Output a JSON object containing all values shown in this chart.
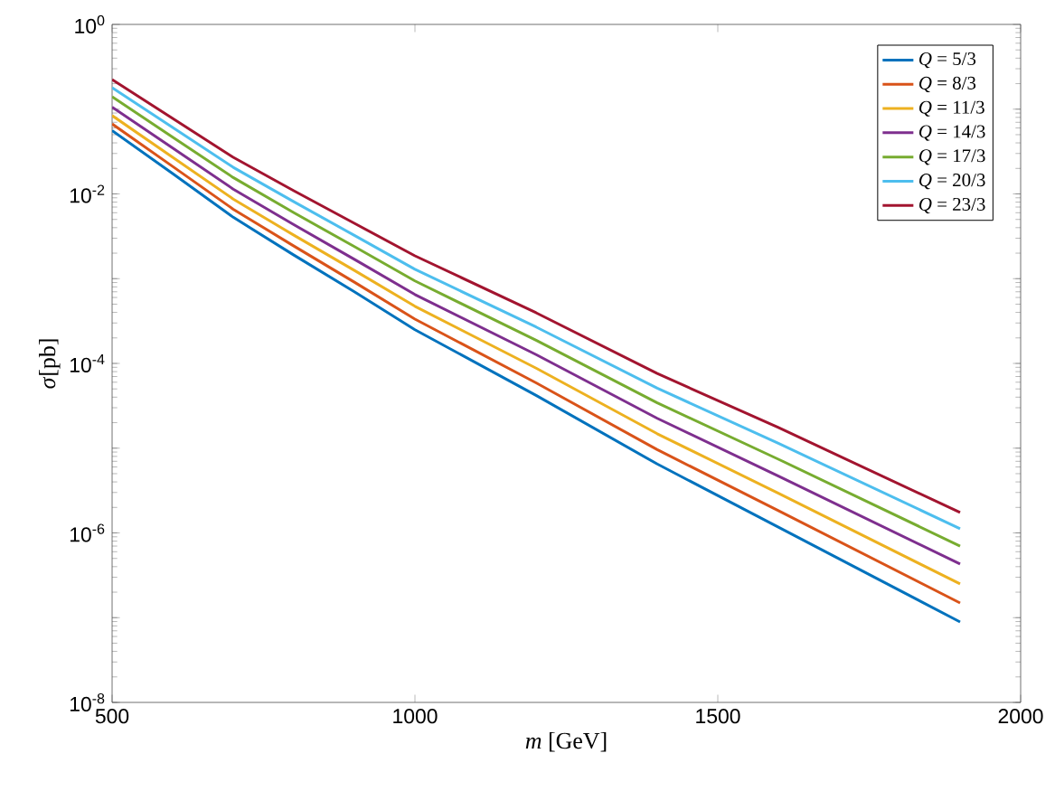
{
  "chart_data": {
    "type": "line",
    "xlabel": "*m* [GeV]",
    "ylabel": "*σ*[pb]",
    "x": [
      500,
      600,
      700,
      800,
      900,
      1000,
      1200,
      1400,
      1600,
      1900
    ],
    "series": [
      {
        "name": "*Q* = 5/3",
        "color": "#0072bd",
        "values": [
          0.056,
          0.0174,
          0.0053,
          0.0019,
          0.0007,
          0.00025,
          4.2e-05,
          6.5e-06,
          1.17e-06,
          8.9e-08
        ]
      },
      {
        "name": "*Q* = 8/3",
        "color": "#d95319",
        "values": [
          0.067,
          0.0211,
          0.0066,
          0.00243,
          0.00091,
          0.000333,
          5.9e-05,
          9.6e-06,
          1.83e-06,
          1.49e-07
        ]
      },
      {
        "name": "*Q* = 11/3",
        "color": "#edb120",
        "values": [
          0.084,
          0.0271,
          0.0087,
          0.00326,
          0.00125,
          0.000472,
          8.8e-05,
          1.48e-05,
          2.94e-06,
          2.5e-07
        ]
      },
      {
        "name": "*Q* = 14/3",
        "color": "#7e2f8e",
        "values": [
          0.106,
          0.0348,
          0.0114,
          0.00434,
          0.00169,
          0.00065,
          0.000127,
          2.25e-05,
          4.69e-06,
          4.3e-07
        ]
      },
      {
        "name": "*Q* = 17/3",
        "color": "#77ac30",
        "values": [
          0.14,
          0.0468,
          0.0156,
          0.006,
          0.00239,
          0.00094,
          0.000188,
          3.42e-05,
          7.4e-06,
          7e-07
        ]
      },
      {
        "name": "*Q* = 20/3",
        "color": "#4dbeee",
        "values": [
          0.179,
          0.0608,
          0.0206,
          0.0081,
          0.00324,
          0.00129,
          0.000269,
          5.1e-05,
          1.14e-05,
          1.12e-06
        ]
      },
      {
        "name": "*Q* = 23/3",
        "color": "#a2142f",
        "values": [
          0.223,
          0.0778,
          0.027,
          0.0109,
          0.0045,
          0.00186,
          0.000396,
          7.6e-05,
          1.75e-05,
          1.74e-06
        ]
      }
    ],
    "xlim": [
      500,
      2000
    ],
    "xticks": [
      500,
      1000,
      1500,
      2000
    ],
    "ylim": [
      1e-08,
      1
    ],
    "yticks": [
      {
        "value": 1e-08,
        "label": "10$^{-8}$"
      },
      {
        "value": 1e-07,
        "label": null
      },
      {
        "value": 1e-06,
        "label": "10$^{-6}$"
      },
      {
        "value": 1e-05,
        "label": null
      },
      {
        "value": 0.0001,
        "label": "10$^{-4}$"
      },
      {
        "value": 0.001,
        "label": null
      },
      {
        "value": 0.01,
        "label": "10$^{-2}$"
      },
      {
        "value": 0.1,
        "label": null
      },
      {
        "value": 1,
        "label": "10$^{0}$"
      }
    ],
    "log": "y",
    "legend": "top right",
    "marker": "none",
    "line_style": "solid"
  }
}
